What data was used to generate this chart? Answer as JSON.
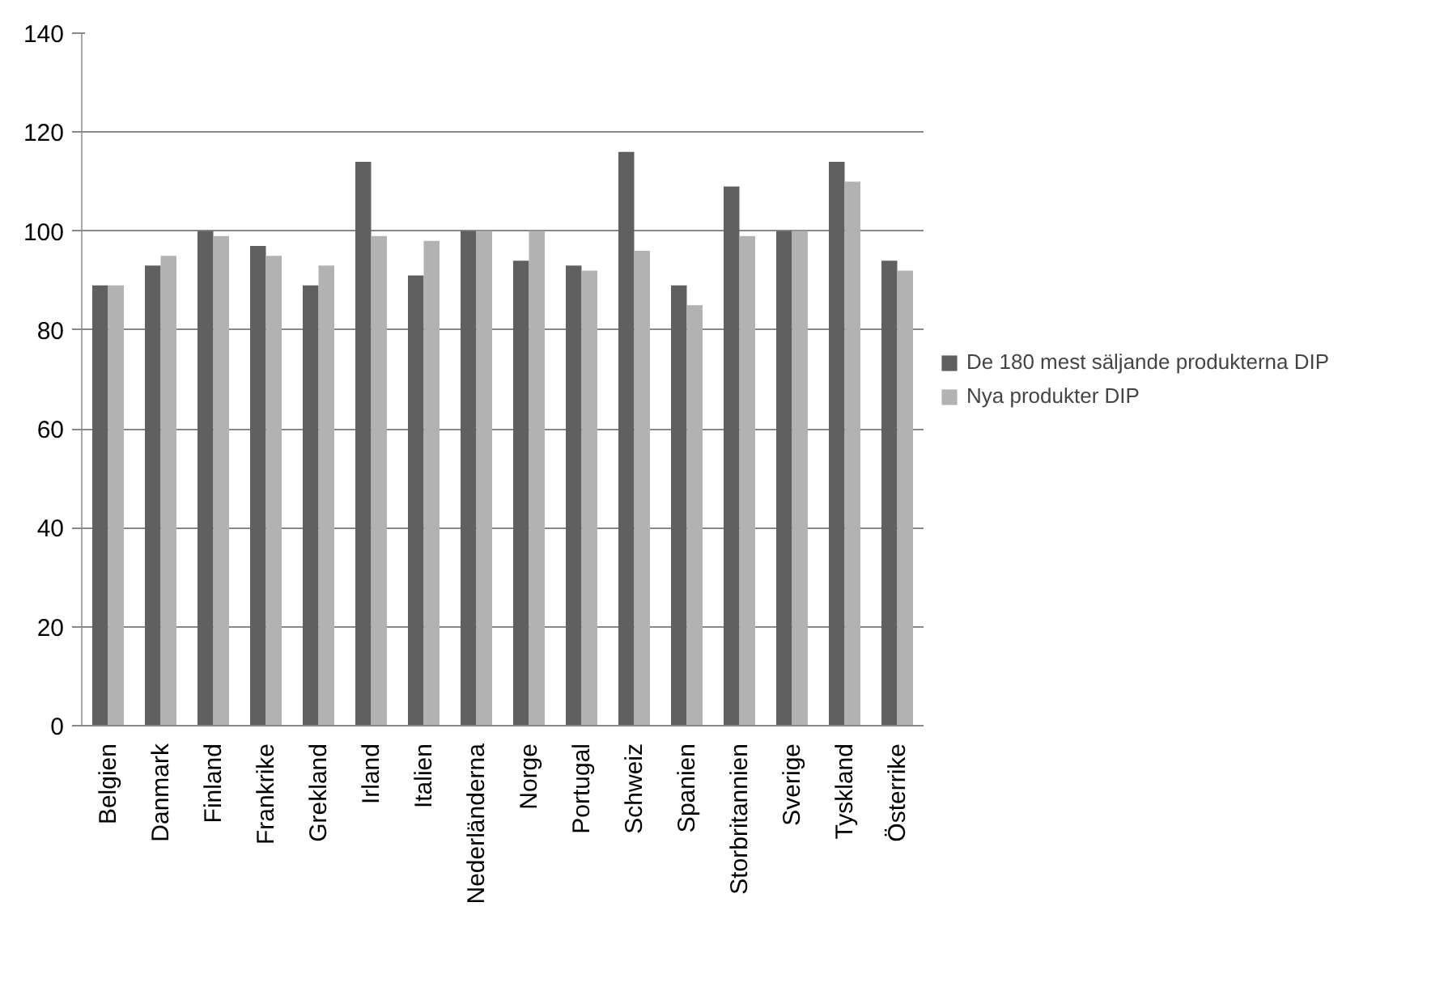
{
  "chart_data": {
    "type": "bar",
    "categories": [
      "Belgien",
      "Danmark",
      "Finland",
      "Frankrike",
      "Grekland",
      "Irland",
      "Italien",
      "Nederländerna",
      "Norge",
      "Portugal",
      "Schweiz",
      "Spanien",
      "Storbritannien",
      "Sverige",
      "Tyskland",
      "Österrike"
    ],
    "series": [
      {
        "name": "De 180 mest säljande produkterna DIP",
        "color": "#606060",
        "values": [
          89,
          93,
          100,
          97,
          89,
          114,
          91,
          100,
          94,
          93,
          116,
          89,
          109,
          100,
          114,
          94
        ]
      },
      {
        "name": "Nya produkter DIP",
        "color": "#b2b2b2",
        "values": [
          89,
          95,
          99,
          95,
          93,
          99,
          98,
          100,
          100,
          92,
          96,
          85,
          99,
          100,
          110,
          92
        ]
      }
    ],
    "ylim": [
      0,
      140
    ],
    "yticks": [
      0,
      20,
      40,
      60,
      80,
      100,
      120,
      140
    ],
    "grid": "y",
    "legend": "right"
  }
}
